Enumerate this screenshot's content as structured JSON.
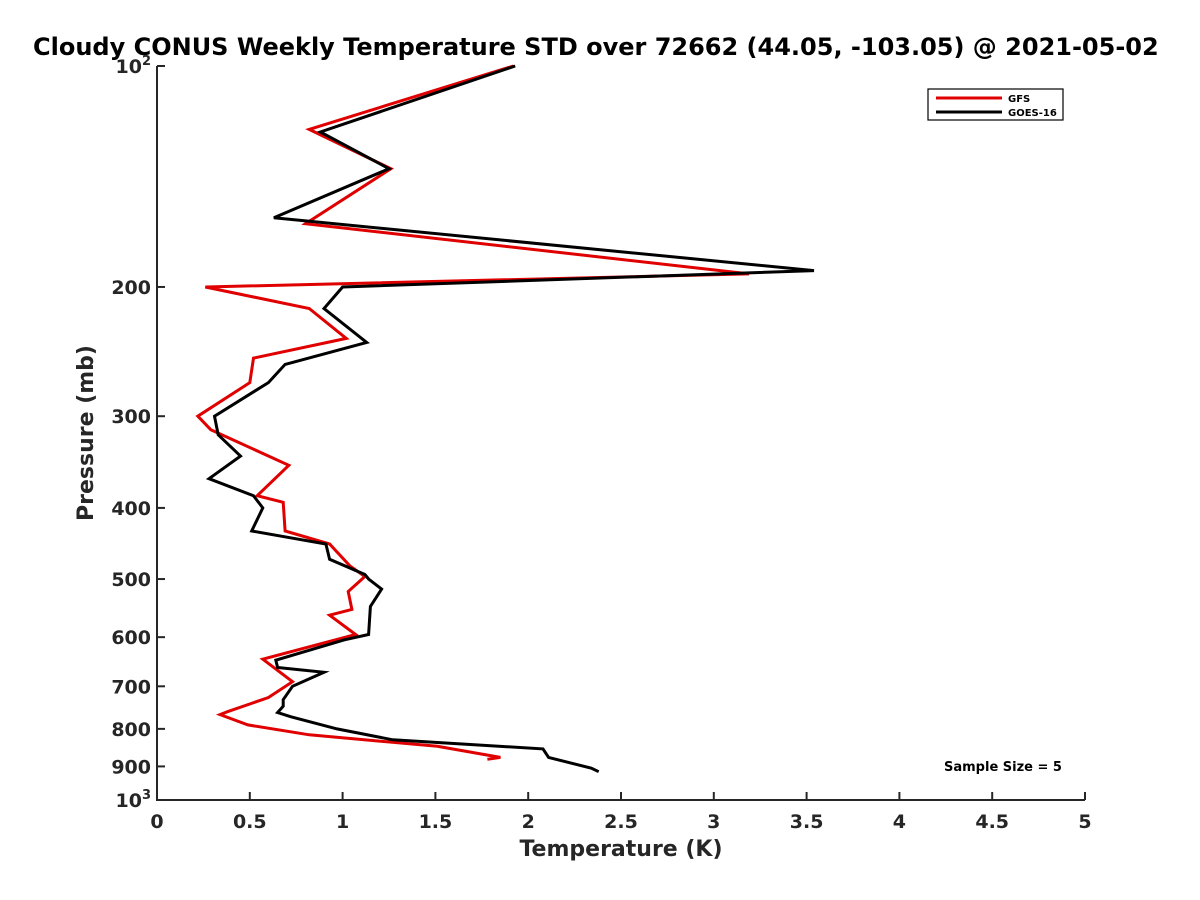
{
  "chart_data": {
    "type": "line",
    "title": "Cloudy CONUS Weekly Temperature STD over 72662 (44.05, -103.05) @ 2021-05-02",
    "xlabel": "Temperature (K)",
    "ylabel": "Pressure (mb)",
    "xlim": [
      0,
      5
    ],
    "ylim": [
      100,
      1000
    ],
    "y_scale": "log",
    "y_reversed": true,
    "grid": false,
    "legend_position": "top-right",
    "x_ticks": [
      "0",
      "0.5",
      "1",
      "1.5",
      "2",
      "2.5",
      "3",
      "3.5",
      "4",
      "4.5",
      "5"
    ],
    "y_ticks": [
      {
        "value": 100,
        "base": "10",
        "sup": "2"
      },
      {
        "value": 200,
        "base": "200",
        "sup": ""
      },
      {
        "value": 300,
        "base": "300",
        "sup": ""
      },
      {
        "value": 400,
        "base": "400",
        "sup": ""
      },
      {
        "value": 500,
        "base": "500",
        "sup": ""
      },
      {
        "value": 600,
        "base": "600",
        "sup": ""
      },
      {
        "value": 700,
        "base": "700",
        "sup": ""
      },
      {
        "value": 800,
        "base": "800",
        "sup": ""
      },
      {
        "value": 900,
        "base": "900",
        "sup": ""
      },
      {
        "value": 1000,
        "base": "10",
        "sup": "3"
      }
    ],
    "annotation": "Sample Size = 5",
    "series": [
      {
        "name": "GFS",
        "color": "#e00000",
        "points": [
          [
            1.92,
            100
          ],
          [
            0.82,
            122
          ],
          [
            1.26,
            138
          ],
          [
            0.8,
            164
          ],
          [
            3.19,
            192
          ],
          [
            0.26,
            200
          ],
          [
            0.82,
            214
          ],
          [
            1.02,
            235
          ],
          [
            0.52,
            250
          ],
          [
            0.5,
            270
          ],
          [
            0.22,
            300
          ],
          [
            0.29,
            313
          ],
          [
            0.71,
            350
          ],
          [
            0.54,
            385
          ],
          [
            0.68,
            393
          ],
          [
            0.69,
            430
          ],
          [
            0.93,
            448
          ],
          [
            1.04,
            480
          ],
          [
            1.12,
            496
          ],
          [
            1.03,
            520
          ],
          [
            1.05,
            550
          ],
          [
            0.93,
            560
          ],
          [
            1.07,
            595
          ],
          [
            0.57,
            643
          ],
          [
            0.73,
            690
          ],
          [
            0.6,
            725
          ],
          [
            0.38,
            758
          ],
          [
            0.34,
            765
          ],
          [
            0.49,
            790
          ],
          [
            0.82,
            815
          ],
          [
            1.51,
            845
          ],
          [
            1.85,
            875
          ],
          [
            1.78,
            880
          ]
        ]
      },
      {
        "name": "GOES-16",
        "color": "#000000",
        "points": [
          [
            1.93,
            100
          ],
          [
            0.88,
            123
          ],
          [
            1.25,
            138
          ],
          [
            0.63,
            161
          ],
          [
            3.54,
            190
          ],
          [
            1.0,
            200
          ],
          [
            0.9,
            214
          ],
          [
            1.13,
            238
          ],
          [
            0.69,
            255
          ],
          [
            0.6,
            270
          ],
          [
            0.31,
            300
          ],
          [
            0.33,
            318
          ],
          [
            0.45,
            340
          ],
          [
            0.28,
            365
          ],
          [
            0.52,
            385
          ],
          [
            0.57,
            400
          ],
          [
            0.51,
            430
          ],
          [
            0.91,
            448
          ],
          [
            0.93,
            470
          ],
          [
            1.12,
            493
          ],
          [
            1.14,
            500
          ],
          [
            1.21,
            516
          ],
          [
            1.15,
            545
          ],
          [
            1.14,
            595
          ],
          [
            1.01,
            605
          ],
          [
            0.64,
            645
          ],
          [
            0.65,
            660
          ],
          [
            0.9,
            670
          ],
          [
            0.73,
            700
          ],
          [
            0.68,
            730
          ],
          [
            0.68,
            745
          ],
          [
            0.65,
            760
          ],
          [
            0.72,
            770
          ],
          [
            0.97,
            800
          ],
          [
            1.27,
            828
          ],
          [
            2.08,
            852
          ],
          [
            2.11,
            875
          ],
          [
            2.34,
            905
          ],
          [
            2.38,
            915
          ]
        ]
      }
    ]
  }
}
